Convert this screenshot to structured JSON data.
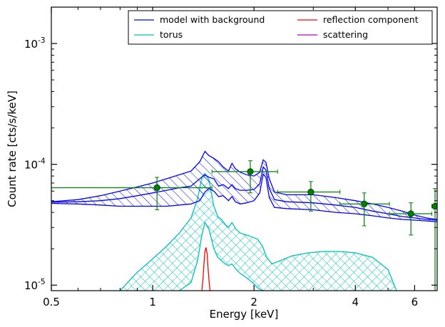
{
  "chart_data": {
    "type": "line",
    "xlabel": "Energy [keV]",
    "ylabel": "Count rate [cts/s/keV]",
    "xscale": "log",
    "yscale": "log",
    "xlim": [
      0.5,
      7.0
    ],
    "ylim": [
      9e-06,
      0.002
    ],
    "x_ticks": [
      {
        "value": 0.5,
        "label": "0.5"
      },
      {
        "value": 1,
        "label": "1"
      },
      {
        "value": 2,
        "label": "2"
      },
      {
        "value": 4,
        "label": "4"
      },
      {
        "value": 6,
        "label": "6"
      }
    ],
    "y_ticks": [
      {
        "value": 1e-05,
        "base": "10",
        "exp": "-5"
      },
      {
        "value": 0.0001,
        "base": "10",
        "exp": "-4"
      },
      {
        "value": 0.001,
        "base": "10",
        "exp": "-3"
      }
    ],
    "legend": {
      "placement": "top-right",
      "columns": 2,
      "entries": [
        {
          "label": "model with background",
          "color": "#0000ff"
        },
        {
          "label": "torus",
          "color": "#00bfbf"
        },
        {
          "label": "reflection component",
          "color": "#ff0000"
        },
        {
          "label": "scattering",
          "color": "#bf00bf"
        }
      ]
    },
    "data_points": {
      "color": "#008000",
      "points": [
        {
          "x": 1.03,
          "y": 6.4e-05,
          "xlo": 0.5,
          "xhi": 1.5,
          "ylo": 4.2e-05,
          "yhi": 7.8e-05
        },
        {
          "x": 1.95,
          "y": 8.7e-05,
          "xlo": 1.5,
          "xhi": 2.35,
          "ylo": 5.8e-05,
          "yhi": 0.000107
        },
        {
          "x": 2.95,
          "y": 5.9e-05,
          "xlo": 2.35,
          "xhi": 3.6,
          "ylo": 4.1e-05,
          "yhi": 7.2e-05
        },
        {
          "x": 4.25,
          "y": 4.7e-05,
          "xlo": 3.6,
          "xhi": 5.05,
          "ylo": 3.1e-05,
          "yhi": 5.8e-05
        },
        {
          "x": 5.85,
          "y": 3.9e-05,
          "xlo": 5.05,
          "xhi": 6.75,
          "ylo": 2.6e-05,
          "yhi": 4.8e-05
        },
        {
          "x": 6.9,
          "y": 4.5e-05,
          "xlo": 6.75,
          "xhi": 7.0,
          "ylo": 9e-06,
          "yhi": 6.3e-05
        }
      ]
    },
    "series": [
      {
        "name": "model with background",
        "color": "#0000ff",
        "hatch": "diagonal",
        "x": [
          0.5,
          0.6,
          0.7,
          0.8,
          0.9,
          1.0,
          1.1,
          1.2,
          1.3,
          1.38,
          1.43,
          1.47,
          1.52,
          1.57,
          1.62,
          1.68,
          1.72,
          1.76,
          1.82,
          1.9,
          2.0,
          2.08,
          2.13,
          2.17,
          2.22,
          2.3,
          2.5,
          3.0,
          3.5,
          4.0,
          4.5,
          5.0,
          5.5,
          6.0,
          6.5,
          7.0
        ],
        "upper": [
          4.9e-05,
          5.1e-05,
          5.5e-05,
          6e-05,
          6.5e-05,
          7e-05,
          7.6e-05,
          8.2e-05,
          8.8e-05,
          0.000105,
          0.000128,
          0.000118,
          0.000112,
          0.000105,
          9.5e-05,
          8.8e-05,
          0.000102,
          9.2e-05,
          8.6e-05,
          8.2e-05,
          8e-05,
          8.6e-05,
          0.000109,
          0.000104,
          7.6e-05,
          5.9e-05,
          5.6e-05,
          5.6e-05,
          5.3e-05,
          5e-05,
          4.7e-05,
          4.4e-05,
          4.1e-05,
          3.8e-05,
          3.6e-05,
          3.5e-05
        ],
        "middle": [
          4.85e-05,
          4.9e-05,
          5e-05,
          5.2e-05,
          5.5e-05,
          5.8e-05,
          6.1e-05,
          6.4e-05,
          6.6e-05,
          7.6e-05,
          8.2e-05,
          7.8e-05,
          7.6e-05,
          6.6e-05,
          6.8e-05,
          6.3e-05,
          6.8e-05,
          6.3e-05,
          6.1e-05,
          6.1e-05,
          6.2e-05,
          6.9e-05,
          9.5e-05,
          9e-05,
          6.3e-05,
          5.1e-05,
          4.9e-05,
          4.8e-05,
          4.6e-05,
          4.4e-05,
          4.1e-05,
          3.9e-05,
          3.7e-05,
          3.6e-05,
          3.5e-05,
          3.45e-05
        ],
        "lower": [
          4.75e-05,
          4.7e-05,
          4.6e-05,
          4.5e-05,
          4.5e-05,
          4.5e-05,
          4.5e-05,
          4.6e-05,
          4.7e-05,
          5e-05,
          5.9e-05,
          6.3e-05,
          6e-05,
          5.4e-05,
          5.5e-05,
          5e-05,
          5.4e-05,
          4.9e-05,
          4.7e-05,
          4.8e-05,
          5e-05,
          5.8e-05,
          8.3e-05,
          7.8e-05,
          5.3e-05,
          4.4e-05,
          4.3e-05,
          4.2e-05,
          4e-05,
          3.9e-05,
          3.75e-05,
          3.6e-05,
          3.5e-05,
          3.45e-05,
          3.4e-05,
          3.35e-05
        ]
      },
      {
        "name": "torus",
        "color": "#00bfbf",
        "hatch": "cross",
        "x": [
          0.8,
          0.9,
          1.0,
          1.1,
          1.2,
          1.3,
          1.36,
          1.4,
          1.43,
          1.47,
          1.52,
          1.56,
          1.6,
          1.64,
          1.68,
          1.72,
          1.77,
          1.82,
          1.9,
          1.98,
          2.05,
          2.12,
          2.18,
          2.26,
          2.4,
          2.6,
          2.9,
          3.2,
          3.6,
          4.0,
          4.5,
          5.0,
          5.3
        ],
        "upper": [
          9e-06,
          1.28e-05,
          1.65e-05,
          2.1e-05,
          2.7e-05,
          3.6e-05,
          5.2e-05,
          7.8e-05,
          8.4e-05,
          7.4e-05,
          4.5e-05,
          3.7e-05,
          3.5e-05,
          3.2e-05,
          3e-05,
          3.3e-05,
          2.9e-05,
          2.7e-05,
          2.6e-05,
          2.5e-05,
          2.4e-05,
          2.1e-05,
          1.7e-05,
          1.5e-05,
          1.6e-05,
          1.75e-05,
          1.85e-05,
          1.9e-05,
          1.9e-05,
          1.85e-05,
          1.7e-05,
          1.35e-05,
          9e-06
        ],
        "lower": [
          null,
          null,
          null,
          null,
          9e-06,
          1.05e-05,
          1.6e-05,
          2.6e-05,
          3.3e-05,
          2.9e-05,
          2e-05,
          1.7e-05,
          1.6e-05,
          1.5e-05,
          1.45e-05,
          1.5e-05,
          1.35e-05,
          1.25e-05,
          1.15e-05,
          1.05e-05,
          9.5e-06,
          9e-06,
          null,
          null,
          null,
          null,
          null,
          null,
          null,
          null,
          null,
          null,
          null
        ]
      },
      {
        "name": "reflection component",
        "color": "#ff0000",
        "x": [
          1.4,
          1.41,
          1.42,
          1.43,
          1.44,
          1.45,
          1.46,
          1.47,
          1.48,
          1.49,
          1.5
        ],
        "y": [
          9e-06,
          1.1e-05,
          1.5e-05,
          1.9e-05,
          2.05e-05,
          1.85e-05,
          1.4e-05,
          1.1e-05,
          9e-06,
          9e-06,
          9e-06
        ]
      }
    ]
  }
}
